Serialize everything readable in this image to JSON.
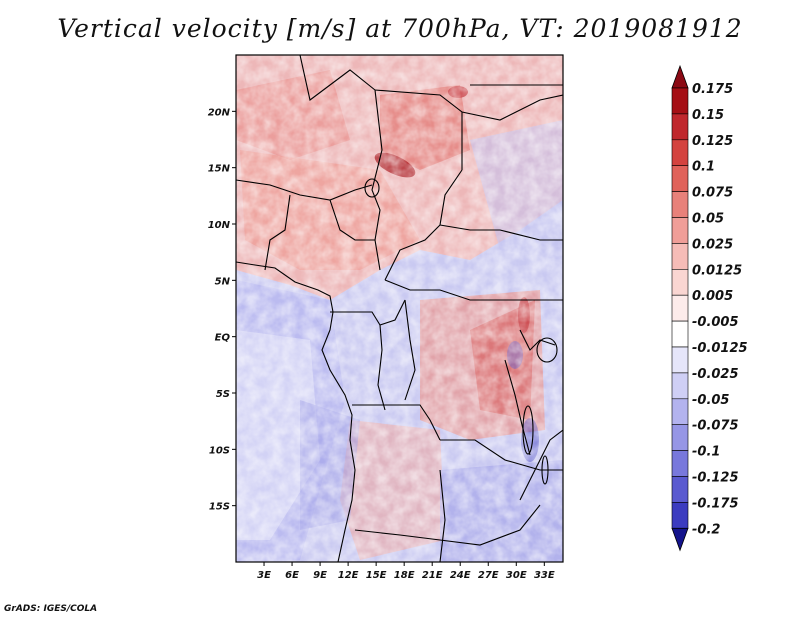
{
  "title": "Vertical velocity [m/s] at 700hPa, VT: 2019081912",
  "footer": "GrADS: IGES/COLA",
  "map": {
    "lon_range": [
      0,
      35
    ],
    "lat_range": [
      -20,
      25
    ],
    "lat_ticks": [
      {
        "value": 20,
        "label": "20N"
      },
      {
        "value": 15,
        "label": "15N"
      },
      {
        "value": 10,
        "label": "10N"
      },
      {
        "value": 5,
        "label": "5N"
      },
      {
        "value": 0,
        "label": "EQ"
      },
      {
        "value": -5,
        "label": "5S"
      },
      {
        "value": -10,
        "label": "10S"
      },
      {
        "value": -15,
        "label": "15S"
      }
    ],
    "lon_ticks": [
      {
        "value": 3,
        "label": "3E"
      },
      {
        "value": 6,
        "label": "6E"
      },
      {
        "value": 9,
        "label": "9E"
      },
      {
        "value": 12,
        "label": "12E"
      },
      {
        "value": 15,
        "label": "15E"
      },
      {
        "value": 18,
        "label": "18E"
      },
      {
        "value": 21,
        "label": "21E"
      },
      {
        "value": 24,
        "label": "24E"
      },
      {
        "value": 27,
        "label": "27E"
      },
      {
        "value": 30,
        "label": "30E"
      },
      {
        "value": 33,
        "label": "33E"
      }
    ]
  },
  "colorbar": {
    "levels": [
      {
        "label": "0.175",
        "color": "#a50f15"
      },
      {
        "label": "0.15",
        "color": "#c0272d"
      },
      {
        "label": "0.125",
        "color": "#d4433f"
      },
      {
        "label": "0.1",
        "color": "#e0625a"
      },
      {
        "label": "0.075",
        "color": "#e8817a"
      },
      {
        "label": "0.05",
        "color": "#f09e98"
      },
      {
        "label": "0.025",
        "color": "#f6bcb7"
      },
      {
        "label": "0.0125",
        "color": "#fad6d2"
      },
      {
        "label": "0.005",
        "color": "#fdeceb"
      },
      {
        "label": "-0.005",
        "color": "#ffffff"
      },
      {
        "label": "-0.0125",
        "color": "#e6e6fa"
      },
      {
        "label": "-0.025",
        "color": "#cfcff5"
      },
      {
        "label": "-0.05",
        "color": "#b3b3ef"
      },
      {
        "label": "-0.075",
        "color": "#9696e6"
      },
      {
        "label": "-0.1",
        "color": "#7878dc"
      },
      {
        "label": "-0.125",
        "color": "#5a5ad0"
      },
      {
        "label": "-0.175",
        "color": "#3c3cc0"
      },
      {
        "label": "-0.2",
        "color": "#2020a8"
      }
    ],
    "top_color": "#8b0a14",
    "bottom_color": "#14148c"
  }
}
